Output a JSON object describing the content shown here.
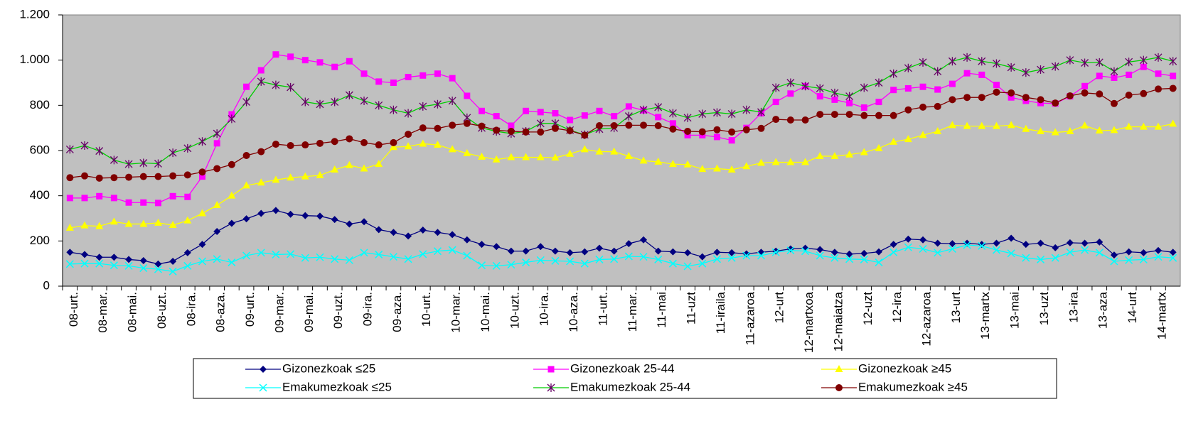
{
  "chart_data": {
    "type": "line",
    "categories": [
      "08-urt.",
      null,
      "08-mar.",
      null,
      "08-mai.",
      null,
      "08-uzt.",
      null,
      "08-ira.",
      null,
      "08-aza.",
      null,
      "09-urt.",
      null,
      "09-mar.",
      null,
      "09-mai.",
      null,
      "09-uzt.",
      null,
      "09-ira.",
      null,
      "09-aza.",
      null,
      "10-urt.",
      null,
      "10-mar.",
      null,
      "10-mai.",
      null,
      "10-uzt.",
      null,
      "10-ira.",
      null,
      "10-aza.",
      null,
      "11-urt.",
      null,
      "11-mar.",
      null,
      "11-mai",
      null,
      "11-uzt",
      null,
      "11-iraila",
      null,
      "11-azaroa",
      null,
      "12-urt",
      null,
      "12-martxoa",
      null,
      "12-maiatza",
      null,
      "12-uzt",
      null,
      "12-ira",
      null,
      "12-azaroa",
      null,
      "13-urt",
      null,
      "13-martx",
      null,
      "13-mai",
      null,
      "13-uzt",
      null,
      "13-ira",
      null,
      "13-aza",
      null,
      "14-urt",
      null,
      "14-martx",
      null
    ],
    "ylim": [
      0,
      1200
    ],
    "yticks": [
      0,
      200,
      400,
      600,
      800,
      {
        "value": 1000,
        "label": "1.000"
      },
      {
        "value": 1200,
        "label": "1.200"
      }
    ],
    "plot_background": "#c0c0c0",
    "series": [
      {
        "name": "Gizonezkoak ≤25",
        "color": "#000080",
        "marker_color": "#000080",
        "marker": "diamond",
        "values": [
          150,
          140,
          128,
          128,
          118,
          113,
          98,
          110,
          148,
          185,
          242,
          278,
          298,
          322,
          335,
          318,
          312,
          310,
          295,
          275,
          285,
          250,
          238,
          222,
          248,
          238,
          228,
          205,
          185,
          175,
          155,
          155,
          175,
          155,
          148,
          152,
          168,
          155,
          188,
          205,
          155,
          152,
          148,
          130,
          150,
          148,
          143,
          150,
          155,
          165,
          168,
          162,
          150,
          142,
          145,
          152,
          185,
          208,
          205,
          190,
          188,
          190,
          185,
          190,
          212,
          185,
          190,
          170,
          192,
          190,
          195,
          138,
          152,
          148,
          158,
          150
        ]
      },
      {
        "name": "Gizonezkoak 25-44",
        "color": "#ff00ff",
        "marker_color": "#ff00ff",
        "marker": "square",
        "values": [
          390,
          390,
          398,
          390,
          370,
          370,
          368,
          398,
          395,
          485,
          632,
          760,
          882,
          955,
          1025,
          1015,
          1000,
          990,
          970,
          995,
          940,
          905,
          900,
          925,
          932,
          940,
          920,
          842,
          775,
          752,
          710,
          775,
          770,
          765,
          735,
          755,
          775,
          752,
          795,
          778,
          748,
          720,
          668,
          668,
          660,
          645,
          700,
          765,
          815,
          852,
          885,
          840,
          825,
          810,
          790,
          815,
          868,
          875,
          882,
          870,
          895,
          942,
          935,
          890,
          835,
          820,
          810,
          808,
          840,
          885,
          930,
          922,
          935,
          970,
          940,
          930
        ]
      },
      {
        "name": "Gizonezkoak ≥45",
        "color": "#ffff00",
        "marker_color": "#ffff00",
        "marker": "triangle",
        "values": [
          258,
          268,
          265,
          285,
          275,
          275,
          280,
          270,
          290,
          322,
          358,
          400,
          445,
          458,
          470,
          480,
          485,
          490,
          515,
          535,
          520,
          540,
          615,
          618,
          630,
          625,
          605,
          588,
          572,
          560,
          570,
          570,
          570,
          568,
          585,
          605,
          595,
          595,
          575,
          555,
          550,
          540,
          538,
          518,
          520,
          515,
          530,
          545,
          548,
          548,
          548,
          575,
          575,
          582,
          592,
          610,
          638,
          650,
          668,
          685,
          712,
          708,
          708,
          708,
          712,
          695,
          685,
          680,
          685,
          710,
          688,
          690,
          705,
          705,
          705,
          718
        ]
      },
      {
        "name": "Emakumezkoak ≤25",
        "color": "#00ffff",
        "marker_color": "#00ffff",
        "marker": "x",
        "values": [
          98,
          100,
          100,
          92,
          90,
          80,
          75,
          65,
          90,
          110,
          120,
          105,
          135,
          148,
          140,
          142,
          125,
          128,
          120,
          115,
          148,
          140,
          130,
          120,
          142,
          155,
          160,
          135,
          92,
          90,
          95,
          105,
          115,
          112,
          110,
          100,
          118,
          120,
          132,
          130,
          118,
          100,
          88,
          100,
          120,
          125,
          135,
          135,
          150,
          158,
          155,
          135,
          125,
          120,
          118,
          105,
          150,
          172,
          165,
          148,
          165,
          182,
          178,
          160,
          145,
          125,
          118,
          125,
          150,
          160,
          148,
          110,
          115,
          118,
          130,
          125
        ]
      },
      {
        "name": "Emakumezkoak 25-44",
        "color": "#00cc00",
        "marker_color": "#660066",
        "marker": "star",
        "values": [
          605,
          622,
          598,
          558,
          540,
          545,
          542,
          590,
          610,
          640,
          675,
          740,
          815,
          905,
          890,
          880,
          815,
          805,
          815,
          845,
          820,
          800,
          780,
          765,
          795,
          805,
          820,
          745,
          700,
          685,
          675,
          685,
          720,
          720,
          690,
          670,
          695,
          700,
          752,
          780,
          792,
          765,
          745,
          762,
          768,
          762,
          780,
          770,
          878,
          900,
          885,
          875,
          855,
          840,
          878,
          900,
          940,
          965,
          990,
          950,
          995,
          1012,
          995,
          985,
          968,
          945,
          958,
          972,
          1000,
          988,
          990,
          950,
          992,
          1000,
          1012,
          995
        ]
      },
      {
        "name": "Emakumezkoak ≥45",
        "color": "#800000",
        "marker_color": "#800000",
        "marker": "circle",
        "values": [
          480,
          488,
          478,
          480,
          482,
          485,
          485,
          488,
          492,
          505,
          520,
          538,
          578,
          595,
          628,
          622,
          625,
          632,
          640,
          652,
          635,
          625,
          635,
          672,
          700,
          698,
          712,
          720,
          708,
          690,
          685,
          682,
          682,
          698,
          688,
          668,
          710,
          710,
          712,
          712,
          710,
          695,
          685,
          683,
          692,
          682,
          692,
          698,
          738,
          735,
          735,
          760,
          760,
          760,
          755,
          755,
          755,
          780,
          792,
          795,
          825,
          835,
          835,
          858,
          855,
          835,
          825,
          810,
          842,
          855,
          850,
          808,
          845,
          852,
          872,
          875
        ]
      }
    ]
  }
}
